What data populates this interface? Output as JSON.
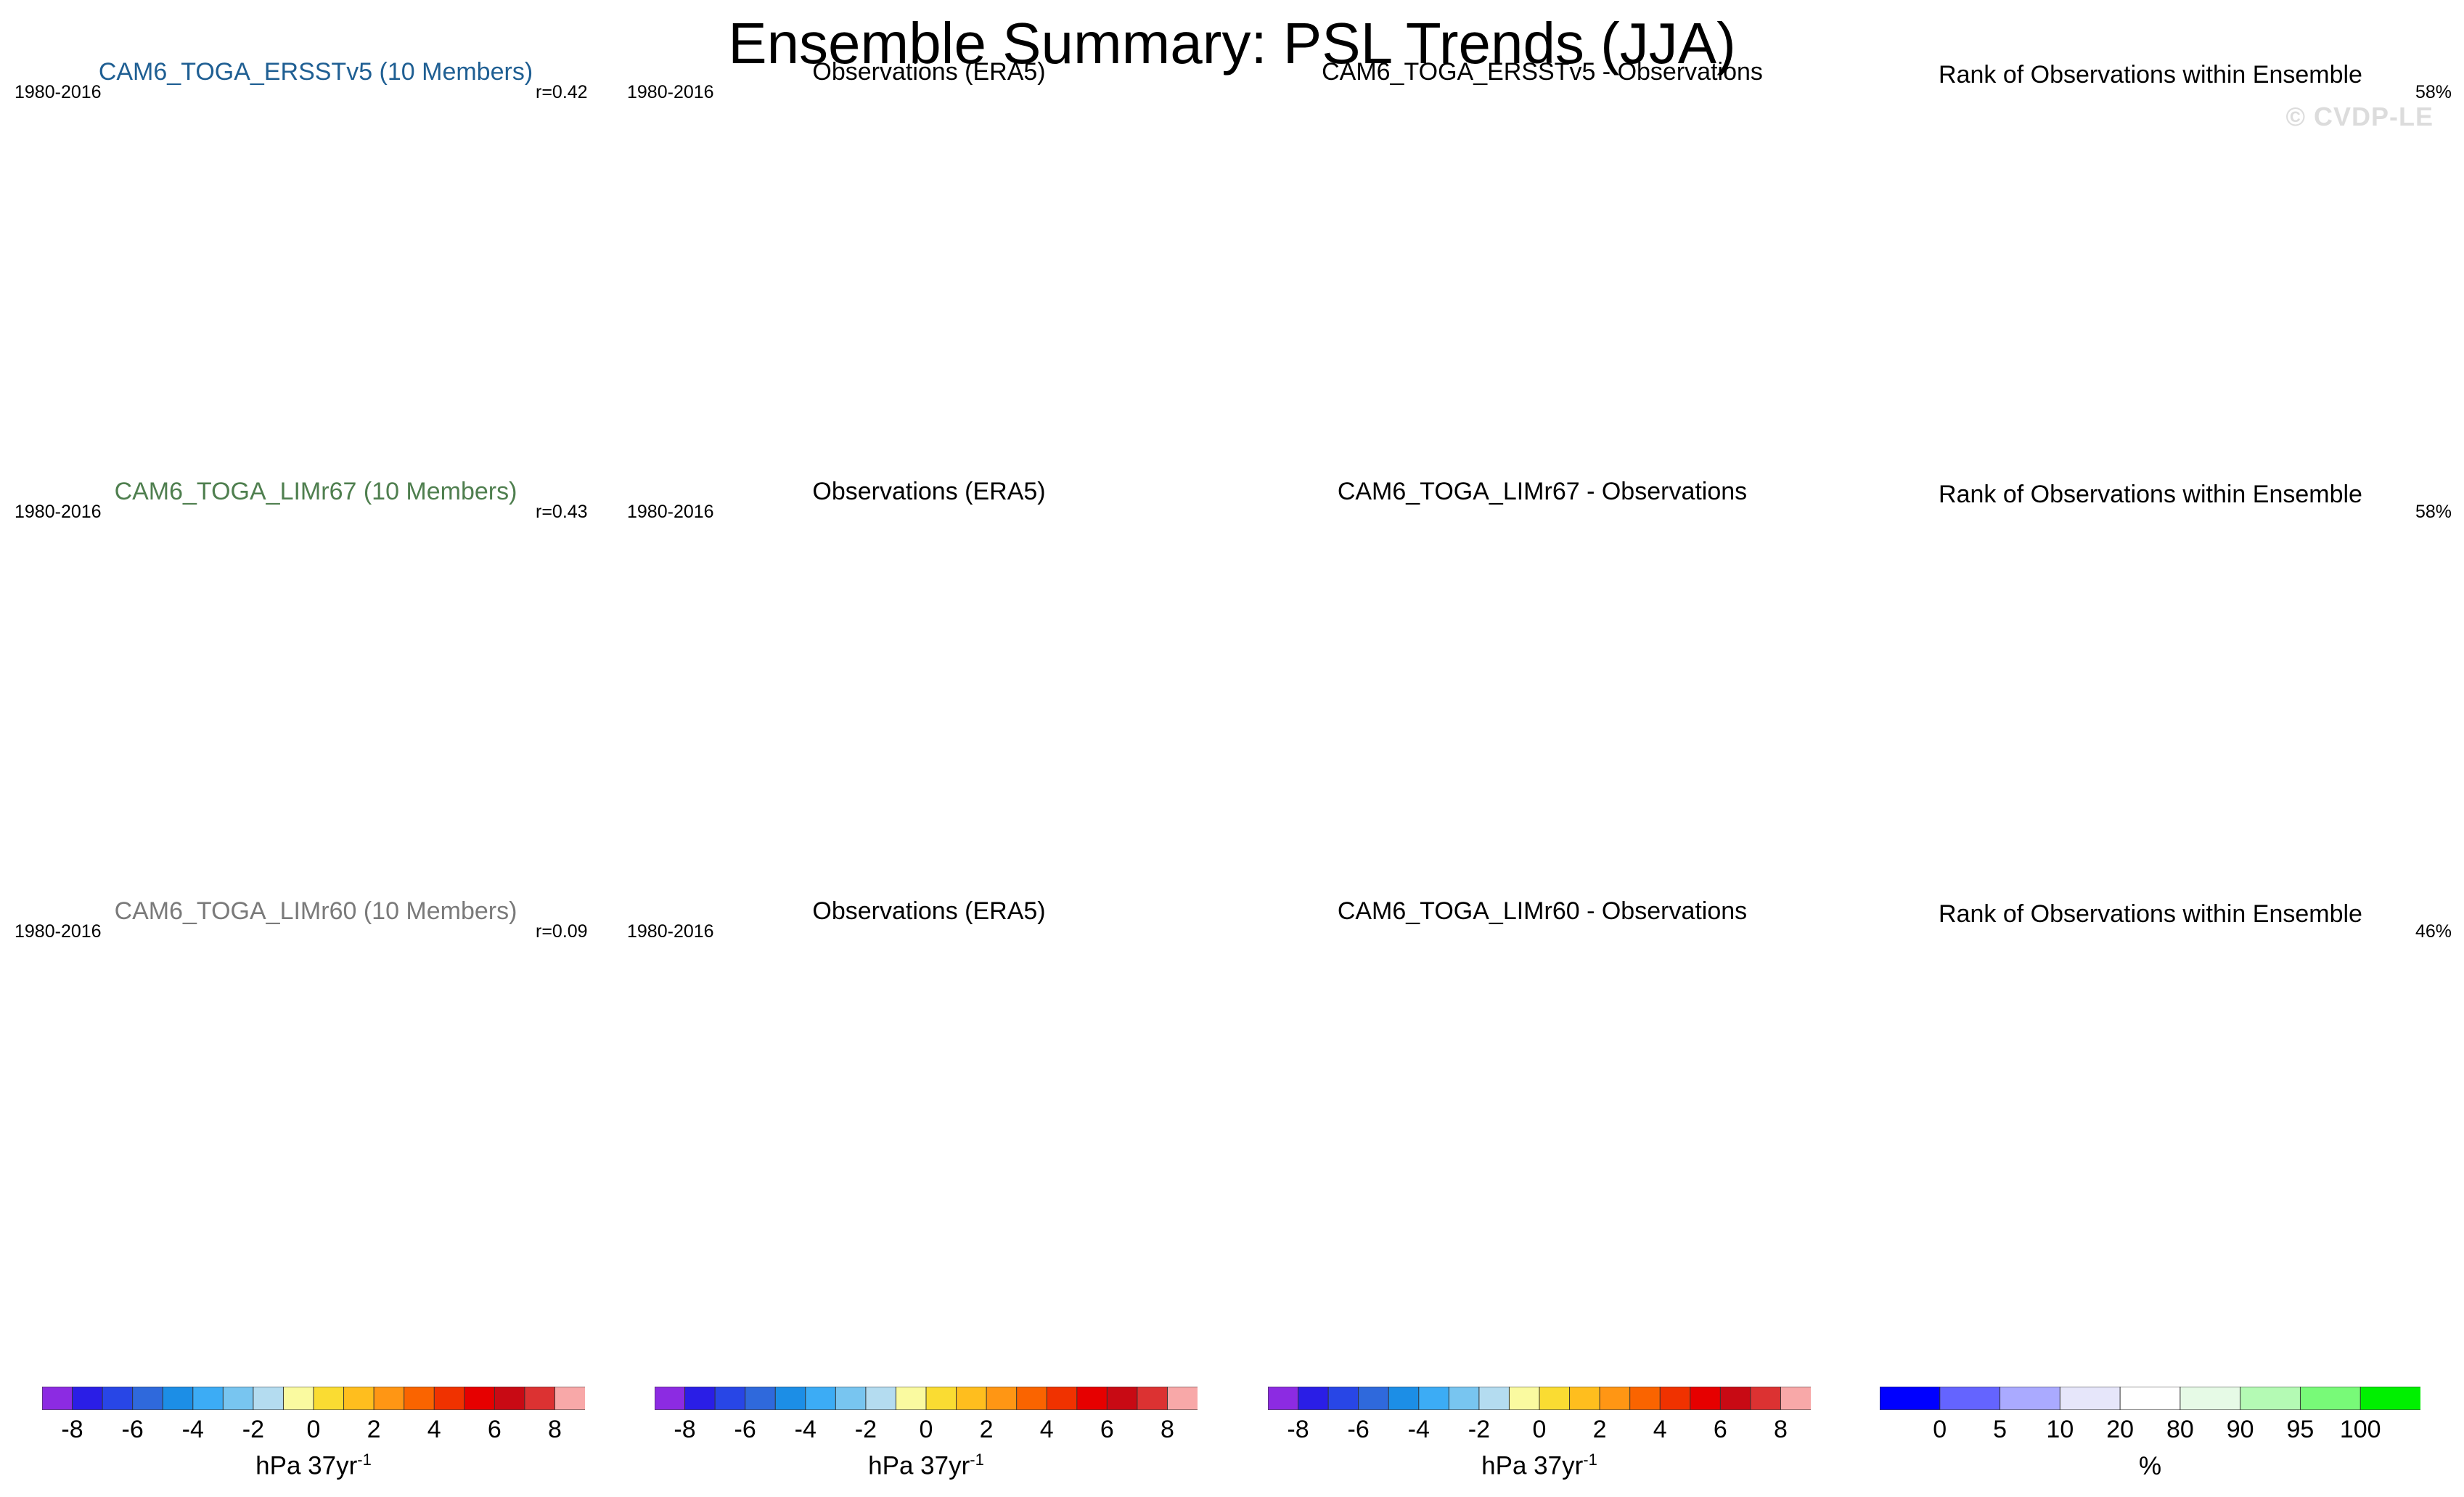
{
  "figure": {
    "title": "Ensemble Summary: PSL Trends (JJA)",
    "watermark": "© CVDP-LE"
  },
  "chart_data": {
    "type": "heatmap",
    "projection": "global map (Hammer/ellipse), Pacific-centered",
    "rows": [
      {
        "model_title": "CAM6_TOGA_ERSSTv5 (10 Members)",
        "period": "1980-2016",
        "r_label": "r=0.42",
        "obs_title": "Observations (ERA5)",
        "obs_period": "1980-2016",
        "diff_title": "CAM6_TOGA_ERSSTv5 - Observations",
        "rank_title": "Rank of Observations within Ensemble",
        "rank_pct": "58%"
      },
      {
        "model_title": "CAM6_TOGA_LIMr67 (10 Members)",
        "period": "1980-2016",
        "r_label": "r=0.43",
        "obs_title": "Observations (ERA5)",
        "obs_period": "1980-2016",
        "diff_title": "CAM6_TOGA_LIMr67 - Observations",
        "rank_title": "Rank of Observations within Ensemble",
        "rank_pct": "58%"
      },
      {
        "model_title": "CAM6_TOGA_LIMr60 (10 Members)",
        "period": "1980-2016",
        "r_label": "r=0.09",
        "obs_title": "Observations (ERA5)",
        "obs_period": "1980-2016",
        "diff_title": "CAM6_TOGA_LIMr60 - Observations",
        "rank_title": "Rank of Observations within Ensemble",
        "rank_pct": "46%"
      }
    ],
    "trend_colorbar": {
      "units_base": "hPa 37yr",
      "units_exp": "-1",
      "ticks": [
        "-8",
        "-6",
        "-4",
        "-2",
        "0",
        "2",
        "4",
        "6",
        "8"
      ],
      "colors": [
        "#8c2be2",
        "#2a1ee6",
        "#2846e6",
        "#2f69dc",
        "#1c8ee6",
        "#3cacf5",
        "#78c5f0",
        "#b4dcf0",
        "#fafaa0",
        "#fadc32",
        "#ffbe1e",
        "#ff9614",
        "#fa6400",
        "#f03200",
        "#e60000",
        "#c80a14",
        "#dc3232",
        "#f8a8a8"
      ]
    },
    "rank_colorbar": {
      "units": "%",
      "ticks": [
        "0",
        "5",
        "10",
        "20",
        "80",
        "90",
        "95",
        "100"
      ],
      "colors": [
        "#0000ff",
        "#6464ff",
        "#aaaaff",
        "#e6e6fa",
        "#ffffff",
        "#e6fae6",
        "#b4fab4",
        "#78fa78",
        "#00f000"
      ]
    }
  }
}
